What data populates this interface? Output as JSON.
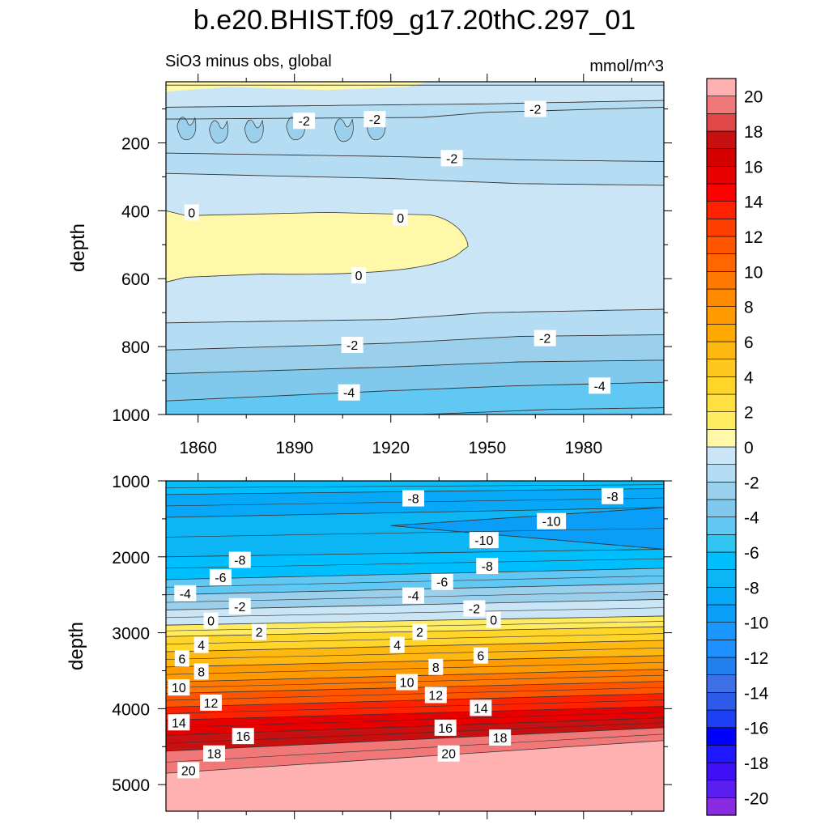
{
  "chart_data": {
    "type": "contour",
    "title": "b.e20.BHIST.f09_g17.20thC.297_01",
    "subtitle_left": "SiO3 minus obs, global",
    "units": "mmol/m^3",
    "x": {
      "range": [
        1850,
        2005
      ],
      "ticks": [
        1860,
        1890,
        1920,
        1950,
        1980
      ],
      "tick_labels": [
        "1860",
        "1890",
        "1920",
        "1950",
        "1980"
      ]
    },
    "panels": [
      {
        "name": "upper",
        "ylabel": "depth",
        "y_range": [
          20,
          1000
        ],
        "y_reversed": true,
        "y_ticks": [
          200,
          400,
          600,
          800,
          1000
        ],
        "y_tick_labels": [
          "200",
          "400",
          "600",
          "800",
          "1000"
        ],
        "contours": [
          {
            "level": 0,
            "depth_at": [
              [
                1850,
                30
              ],
              [
                1930,
                30
              ],
              [
                2005,
                30
              ]
            ]
          },
          {
            "level": -1,
            "depth_at": [
              [
                1850,
                95
              ],
              [
                1900,
                90
              ],
              [
                1950,
                85
              ],
              [
                2005,
                75
              ]
            ]
          },
          {
            "level": -2,
            "depth_at": [
              [
                1850,
                130
              ],
              [
                1930,
                125
              ],
              [
                1950,
                110
              ],
              [
                2005,
                95
              ]
            ]
          },
          {
            "level": -2,
            "depth_at": [
              [
                1850,
                230
              ],
              [
                1920,
                240
              ],
              [
                1960,
                250
              ],
              [
                2005,
                255
              ]
            ]
          },
          {
            "level": -1,
            "depth_at": [
              [
                1850,
                290
              ],
              [
                1920,
                305
              ],
              [
                1960,
                320
              ],
              [
                2005,
                325
              ]
            ]
          },
          {
            "level": -1,
            "depth_at": [
              [
                1850,
                730
              ],
              [
                1920,
                720
              ],
              [
                1950,
                700
              ],
              [
                2005,
                690
              ]
            ]
          },
          {
            "level": -2,
            "depth_at": [
              [
                1850,
                810
              ],
              [
                1920,
                790
              ],
              [
                1960,
                770
              ],
              [
                2005,
                765
              ]
            ]
          },
          {
            "level": -3,
            "depth_at": [
              [
                1850,
                880
              ],
              [
                1920,
                860
              ],
              [
                1960,
                845
              ],
              [
                2005,
                840
              ]
            ]
          },
          {
            "level": -4,
            "depth_at": [
              [
                1850,
                960
              ],
              [
                1920,
                930
              ],
              [
                1960,
                915
              ],
              [
                2005,
                905
              ]
            ]
          },
          {
            "level": -5,
            "depth_at": [
              [
                1930,
                1000
              ],
              [
                1970,
                985
              ],
              [
                2005,
                980
              ]
            ]
          }
        ],
        "positive_pocket": {
          "level": 0,
          "depth_range": [
            400,
            610
          ],
          "x_range": [
            1850,
            1944
          ]
        },
        "labels": [
          {
            "text": "-2",
            "x": 1893,
            "depth": 135
          },
          {
            "text": "-2",
            "x": 1915,
            "depth": 130
          },
          {
            "text": "-2",
            "x": 1965,
            "depth": 100
          },
          {
            "text": "-2",
            "x": 1939,
            "depth": 245
          },
          {
            "text": "0",
            "x": 1858,
            "depth": 405
          },
          {
            "text": "0",
            "x": 1923,
            "depth": 420
          },
          {
            "text": "0",
            "x": 1910,
            "depth": 590
          },
          {
            "text": "-2",
            "x": 1908,
            "depth": 795
          },
          {
            "text": "-2",
            "x": 1968,
            "depth": 775
          },
          {
            "text": "-4",
            "x": 1907,
            "depth": 935
          },
          {
            "text": "-4",
            "x": 1985,
            "depth": 915
          }
        ]
      },
      {
        "name": "lower",
        "ylabel": "depth",
        "y_range": [
          1000,
          5350
        ],
        "y_reversed": true,
        "y_ticks": [
          1000,
          2000,
          3000,
          4000,
          5000
        ],
        "y_tick_labels": [
          "1000",
          "2000",
          "3000",
          "4000",
          "5000"
        ],
        "contours_left": [
          [
            -5,
            1000
          ],
          [
            -7,
            1180
          ],
          [
            -9,
            1480
          ],
          [
            -8,
            2000
          ],
          [
            -6,
            2300
          ],
          [
            -4,
            2500
          ],
          [
            -2,
            2700
          ],
          [
            0,
            2900
          ],
          [
            2,
            3050
          ],
          [
            4,
            3250
          ],
          [
            6,
            3450
          ],
          [
            8,
            3650
          ],
          [
            10,
            3800
          ],
          [
            12,
            3980
          ],
          [
            14,
            4150
          ],
          [
            16,
            4350
          ],
          [
            18,
            4560
          ],
          [
            20,
            4850
          ]
        ],
        "contours_right": [
          [
            -5,
            1000
          ],
          [
            -7,
            1100
          ],
          [
            -9,
            1350
          ],
          [
            -8,
            1900
          ],
          [
            -6,
            2150
          ],
          [
            -4,
            2350
          ],
          [
            -2,
            2560
          ],
          [
            0,
            2780
          ],
          [
            2,
            2920
          ],
          [
            4,
            3100
          ],
          [
            6,
            3300
          ],
          [
            8,
            3480
          ],
          [
            10,
            3640
          ],
          [
            12,
            3800
          ],
          [
            14,
            3970
          ],
          [
            16,
            4120
          ],
          [
            18,
            4250
          ],
          [
            20,
            4420
          ]
        ],
        "minimum_zone": {
          "level": -10,
          "x_range": [
            1920,
            2005
          ],
          "depth_at_left": 1590
        },
        "labels": [
          {
            "text": "-8",
            "x": 1927,
            "depth": 1230
          },
          {
            "text": "-8",
            "x": 1989,
            "depth": 1200
          },
          {
            "text": "-10",
            "x": 1970,
            "depth": 1530
          },
          {
            "text": "-10",
            "x": 1949,
            "depth": 1780
          },
          {
            "text": "-8",
            "x": 1873,
            "depth": 2040
          },
          {
            "text": "-8",
            "x": 1950,
            "depth": 2120
          },
          {
            "text": "-6",
            "x": 1867,
            "depth": 2270
          },
          {
            "text": "-6",
            "x": 1936,
            "depth": 2330
          },
          {
            "text": "-4",
            "x": 1856,
            "depth": 2480
          },
          {
            "text": "-4",
            "x": 1927,
            "depth": 2510
          },
          {
            "text": "-2",
            "x": 1873,
            "depth": 2650
          },
          {
            "text": "-2",
            "x": 1946,
            "depth": 2680
          },
          {
            "text": "0",
            "x": 1864,
            "depth": 2840
          },
          {
            "text": "0",
            "x": 1952,
            "depth": 2830
          },
          {
            "text": "2",
            "x": 1879,
            "depth": 2990
          },
          {
            "text": "2",
            "x": 1929,
            "depth": 2990
          },
          {
            "text": "4",
            "x": 1861,
            "depth": 3160
          },
          {
            "text": "4",
            "x": 1922,
            "depth": 3160
          },
          {
            "text": "6",
            "x": 1855,
            "depth": 3340
          },
          {
            "text": "6",
            "x": 1948,
            "depth": 3300
          },
          {
            "text": "8",
            "x": 1861,
            "depth": 3510
          },
          {
            "text": "8",
            "x": 1934,
            "depth": 3450
          },
          {
            "text": "10",
            "x": 1854,
            "depth": 3720
          },
          {
            "text": "10",
            "x": 1925,
            "depth": 3650
          },
          {
            "text": "12",
            "x": 1864,
            "depth": 3920
          },
          {
            "text": "12",
            "x": 1934,
            "depth": 3820
          },
          {
            "text": "14",
            "x": 1854,
            "depth": 4180
          },
          {
            "text": "14",
            "x": 1948,
            "depth": 3990
          },
          {
            "text": "16",
            "x": 1874,
            "depth": 4360
          },
          {
            "text": "16",
            "x": 1937,
            "depth": 4250
          },
          {
            "text": "18",
            "x": 1865,
            "depth": 4590
          },
          {
            "text": "18",
            "x": 1954,
            "depth": 4380
          },
          {
            "text": "20",
            "x": 1857,
            "depth": 4810
          },
          {
            "text": "20",
            "x": 1938,
            "depth": 4590
          }
        ]
      }
    ],
    "colorbar": {
      "levels": [
        -20,
        -19,
        -18,
        -17,
        -16,
        -15,
        -14,
        -13,
        -12,
        -11,
        -10,
        -9,
        -8,
        -7,
        -6,
        -5,
        -4,
        -3,
        -2,
        -1,
        0,
        1,
        2,
        3,
        4,
        5,
        6,
        7,
        8,
        9,
        10,
        11,
        12,
        13,
        14,
        15,
        16,
        17,
        18,
        19,
        20
      ],
      "tick_values": [
        -20,
        -18,
        -16,
        -14,
        -12,
        -10,
        -8,
        -6,
        -4,
        -2,
        0,
        2,
        4,
        6,
        8,
        10,
        12,
        14,
        16,
        18,
        20
      ],
      "tick_labels": [
        "-20",
        "-18",
        "-16",
        "-14",
        "-12",
        "-10",
        "-8",
        "-6",
        "-4",
        "-2",
        "0",
        "2",
        "4",
        "6",
        "8",
        "10",
        "12",
        "14",
        "16",
        "18",
        "20"
      ],
      "colors": [
        "#8a2be2",
        "#5a1ff0",
        "#3f10f5",
        "#1f18ff",
        "#0000ff",
        "#1e40f5",
        "#2d5ae8",
        "#3e6fe5",
        "#2080f0",
        "#1e90ff",
        "#1c96ff",
        "#0a9ef8",
        "#08a8f8",
        "#0cb6f4",
        "#00bfff",
        "#30c5f0",
        "#60c8f2",
        "#80c8ec",
        "#9ad0ec",
        "#b4dcf2",
        "#cae6f6",
        "#fff8a8",
        "#ffeb60",
        "#ffe042",
        "#ffd52a",
        "#ffc820",
        "#ffb810",
        "#ffa800",
        "#ff9a00",
        "#ff8a00",
        "#ff7800",
        "#ff6500",
        "#ff5500",
        "#ff3f00",
        "#ff2200",
        "#ff0000",
        "#e80000",
        "#d40000",
        "#c81010",
        "#e04848",
        "#f07878",
        "#ffb0b0"
      ]
    }
  }
}
